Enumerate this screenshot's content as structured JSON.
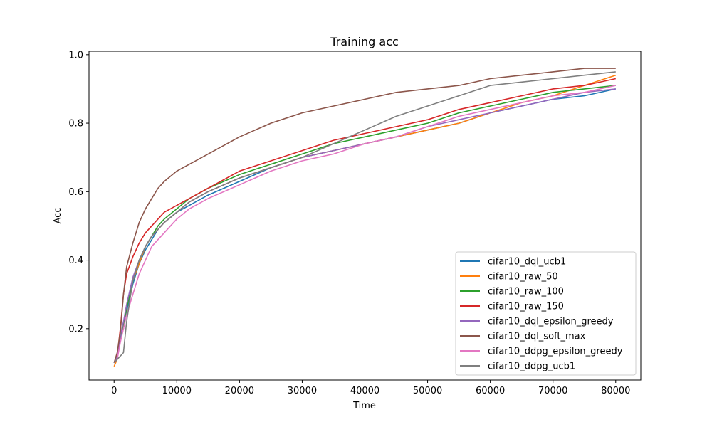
{
  "chart_data": {
    "type": "line",
    "title": "Training acc",
    "xlabel": "Time",
    "ylabel": "Acc",
    "xlim": [
      -4000,
      84000
    ],
    "ylim": [
      0.05,
      1.01
    ],
    "xticks": [
      0,
      10000,
      20000,
      30000,
      40000,
      50000,
      60000,
      70000,
      80000
    ],
    "xtick_labels": [
      "0",
      "10000",
      "20000",
      "30000",
      "40000",
      "50000",
      "60000",
      "70000",
      "80000"
    ],
    "yticks": [
      0.2,
      0.4,
      0.6,
      0.8,
      1.0
    ],
    "ytick_labels": [
      "0.2",
      "0.4",
      "0.6",
      "0.8",
      "1.0"
    ],
    "grid": false,
    "legend_position": "lower-right",
    "series": [
      {
        "name": "cifar10_dql_ucb1",
        "color": "#1f77b4",
        "x": [
          0,
          500,
          1000,
          1500,
          2000,
          3000,
          4000,
          5000,
          6000,
          7000,
          8000,
          10000,
          12000,
          15000,
          20000,
          25000,
          30000,
          35000,
          40000,
          45000,
          50000,
          55000,
          60000,
          65000,
          70000,
          75000,
          80000
        ],
        "y": [
          0.1,
          0.12,
          0.17,
          0.2,
          0.25,
          0.33,
          0.39,
          0.43,
          0.46,
          0.49,
          0.51,
          0.54,
          0.56,
          0.59,
          0.63,
          0.67,
          0.7,
          0.72,
          0.74,
          0.76,
          0.78,
          0.8,
          0.83,
          0.85,
          0.87,
          0.88,
          0.9
        ]
      },
      {
        "name": "cifar10_raw_50",
        "color": "#ff7f0e",
        "x": [
          0,
          500,
          1000,
          1500,
          2000,
          3000,
          4000,
          5000,
          6000,
          7000,
          8000,
          10000,
          12000,
          15000,
          20000,
          25000,
          30000,
          35000,
          40000,
          45000,
          50000,
          55000,
          60000,
          65000,
          70000,
          75000,
          80000
        ],
        "y": [
          0.09,
          0.11,
          0.18,
          0.21,
          0.26,
          0.34,
          0.39,
          0.44,
          0.47,
          0.49,
          0.51,
          0.54,
          0.57,
          0.6,
          0.64,
          0.67,
          0.7,
          0.72,
          0.74,
          0.76,
          0.78,
          0.8,
          0.83,
          0.86,
          0.88,
          0.91,
          0.94
        ]
      },
      {
        "name": "cifar10_raw_100",
        "color": "#2ca02c",
        "x": [
          0,
          500,
          1000,
          1500,
          2000,
          3000,
          4000,
          5000,
          6000,
          7000,
          8000,
          10000,
          12000,
          15000,
          20000,
          25000,
          30000,
          35000,
          40000,
          45000,
          50000,
          55000,
          60000,
          65000,
          70000,
          75000,
          80000
        ],
        "y": [
          0.1,
          0.12,
          0.18,
          0.21,
          0.26,
          0.34,
          0.4,
          0.44,
          0.47,
          0.5,
          0.52,
          0.55,
          0.58,
          0.61,
          0.65,
          0.68,
          0.71,
          0.74,
          0.76,
          0.78,
          0.8,
          0.83,
          0.85,
          0.87,
          0.89,
          0.9,
          0.91
        ]
      },
      {
        "name": "cifar10_raw_150",
        "color": "#d62728",
        "x": [
          0,
          500,
          1000,
          1500,
          2000,
          3000,
          4000,
          5000,
          6000,
          7000,
          8000,
          10000,
          12000,
          15000,
          20000,
          25000,
          30000,
          35000,
          40000,
          45000,
          50000,
          55000,
          60000,
          65000,
          70000,
          75000,
          80000
        ],
        "y": [
          0.1,
          0.12,
          0.2,
          0.3,
          0.36,
          0.41,
          0.45,
          0.48,
          0.5,
          0.52,
          0.54,
          0.56,
          0.58,
          0.61,
          0.66,
          0.69,
          0.72,
          0.75,
          0.77,
          0.79,
          0.81,
          0.84,
          0.86,
          0.88,
          0.9,
          0.91,
          0.93
        ]
      },
      {
        "name": "cifar10_dql_epsilon_greedy",
        "color": "#9467bd",
        "x": [
          0,
          500,
          1000,
          1500,
          2000,
          3000,
          4000,
          5000,
          6000,
          7000,
          8000,
          10000,
          12000,
          15000,
          20000,
          25000,
          30000,
          35000,
          40000,
          45000,
          50000,
          55000,
          60000,
          65000,
          70000,
          75000,
          80000
        ],
        "y": [
          0.1,
          0.12,
          0.18,
          0.22,
          0.27,
          0.35,
          0.4,
          0.44,
          0.47,
          0.49,
          0.51,
          0.54,
          0.57,
          0.6,
          0.64,
          0.67,
          0.7,
          0.72,
          0.74,
          0.76,
          0.79,
          0.81,
          0.83,
          0.85,
          0.87,
          0.89,
          0.9
        ]
      },
      {
        "name": "cifar10_dql_soft_max",
        "color": "#8c564b",
        "x": [
          0,
          500,
          1000,
          1500,
          2000,
          3000,
          4000,
          5000,
          6000,
          7000,
          8000,
          10000,
          12000,
          15000,
          20000,
          25000,
          30000,
          35000,
          40000,
          45000,
          50000,
          55000,
          60000,
          65000,
          70000,
          75000,
          80000
        ],
        "y": [
          0.1,
          0.13,
          0.19,
          0.3,
          0.38,
          0.45,
          0.51,
          0.55,
          0.58,
          0.61,
          0.63,
          0.66,
          0.68,
          0.71,
          0.76,
          0.8,
          0.83,
          0.85,
          0.87,
          0.89,
          0.9,
          0.91,
          0.93,
          0.94,
          0.95,
          0.96,
          0.96
        ]
      },
      {
        "name": "cifar10_ddpg_epsilon_greedy",
        "color": "#e377c2",
        "x": [
          0,
          500,
          1000,
          1500,
          2000,
          3000,
          4000,
          5000,
          6000,
          7000,
          8000,
          10000,
          12000,
          15000,
          20000,
          25000,
          30000,
          35000,
          40000,
          45000,
          50000,
          55000,
          60000,
          65000,
          70000,
          75000,
          80000
        ],
        "y": [
          0.1,
          0.11,
          0.16,
          0.2,
          0.24,
          0.3,
          0.36,
          0.4,
          0.44,
          0.46,
          0.48,
          0.52,
          0.55,
          0.58,
          0.62,
          0.66,
          0.69,
          0.71,
          0.74,
          0.76,
          0.79,
          0.82,
          0.84,
          0.86,
          0.88,
          0.89,
          0.91
        ]
      },
      {
        "name": "cifar10_ddpg_ucb1",
        "color": "#7f7f7f",
        "x": [
          0,
          500,
          1000,
          1500,
          2000,
          3000,
          4000,
          5000,
          6000,
          7000,
          8000,
          10000,
          12000,
          15000,
          20000,
          25000,
          30000,
          35000,
          40000,
          45000,
          50000,
          55000,
          60000,
          65000,
          70000,
          75000,
          80000
        ],
        "y": [
          0.1,
          0.11,
          0.12,
          0.13,
          0.22,
          0.34,
          0.4,
          0.44,
          0.47,
          0.49,
          0.51,
          0.54,
          0.57,
          0.6,
          0.64,
          0.67,
          0.7,
          0.74,
          0.78,
          0.82,
          0.85,
          0.88,
          0.91,
          0.92,
          0.93,
          0.94,
          0.95
        ]
      }
    ]
  }
}
